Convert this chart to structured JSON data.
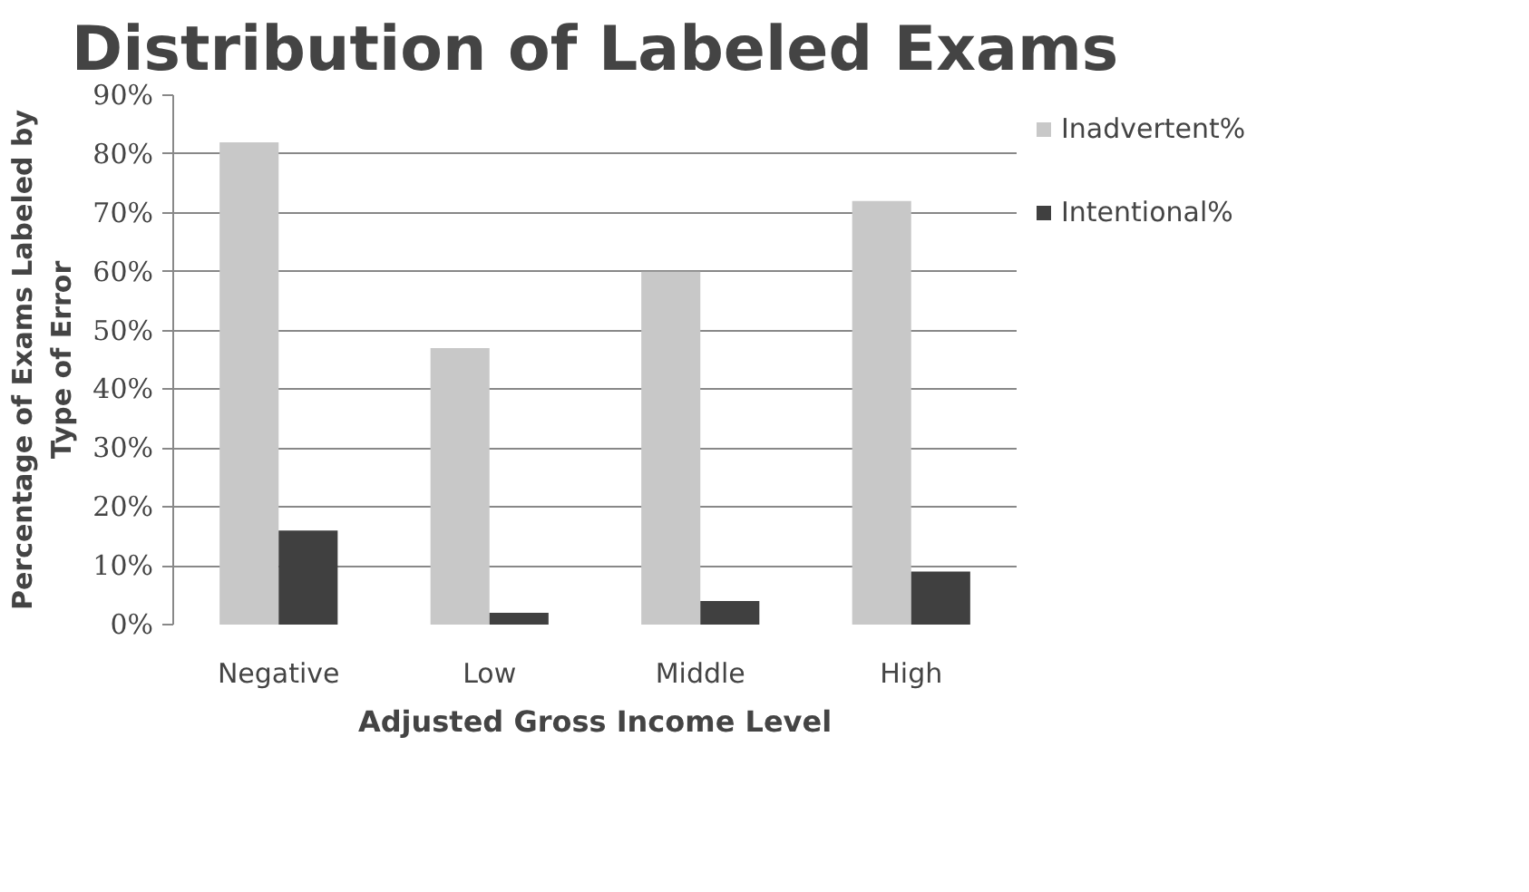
{
  "chart_data": {
    "type": "bar",
    "title": "Distribution of Labeled Exams",
    "xlabel": "Adjusted Gross Income Level",
    "ylabel": "Percentage of Exams Labeled by\nType of Error",
    "categories": [
      "Negative",
      "Low",
      "Middle",
      "High"
    ],
    "series": [
      {
        "name": "Inadvertent%",
        "color": "#c8c8c8",
        "values": [
          82,
          47,
          60,
          72
        ]
      },
      {
        "name": "Intentional%",
        "color": "#404040",
        "values": [
          16,
          2,
          4,
          9
        ]
      }
    ],
    "ylim": [
      0,
      90
    ],
    "yticks": [
      {
        "value": 0,
        "label": "0%"
      },
      {
        "value": 10,
        "label": "10%"
      },
      {
        "value": 20,
        "label": "20%"
      },
      {
        "value": 30,
        "label": "30%"
      },
      {
        "value": 40,
        "label": "40%"
      },
      {
        "value": 50,
        "label": "50%"
      },
      {
        "value": 60,
        "label": "60%"
      },
      {
        "value": 70,
        "label": "70%"
      },
      {
        "value": 80,
        "label": "80%"
      },
      {
        "value": 90,
        "label": "90%"
      }
    ],
    "grid": "y",
    "legend": "right"
  }
}
